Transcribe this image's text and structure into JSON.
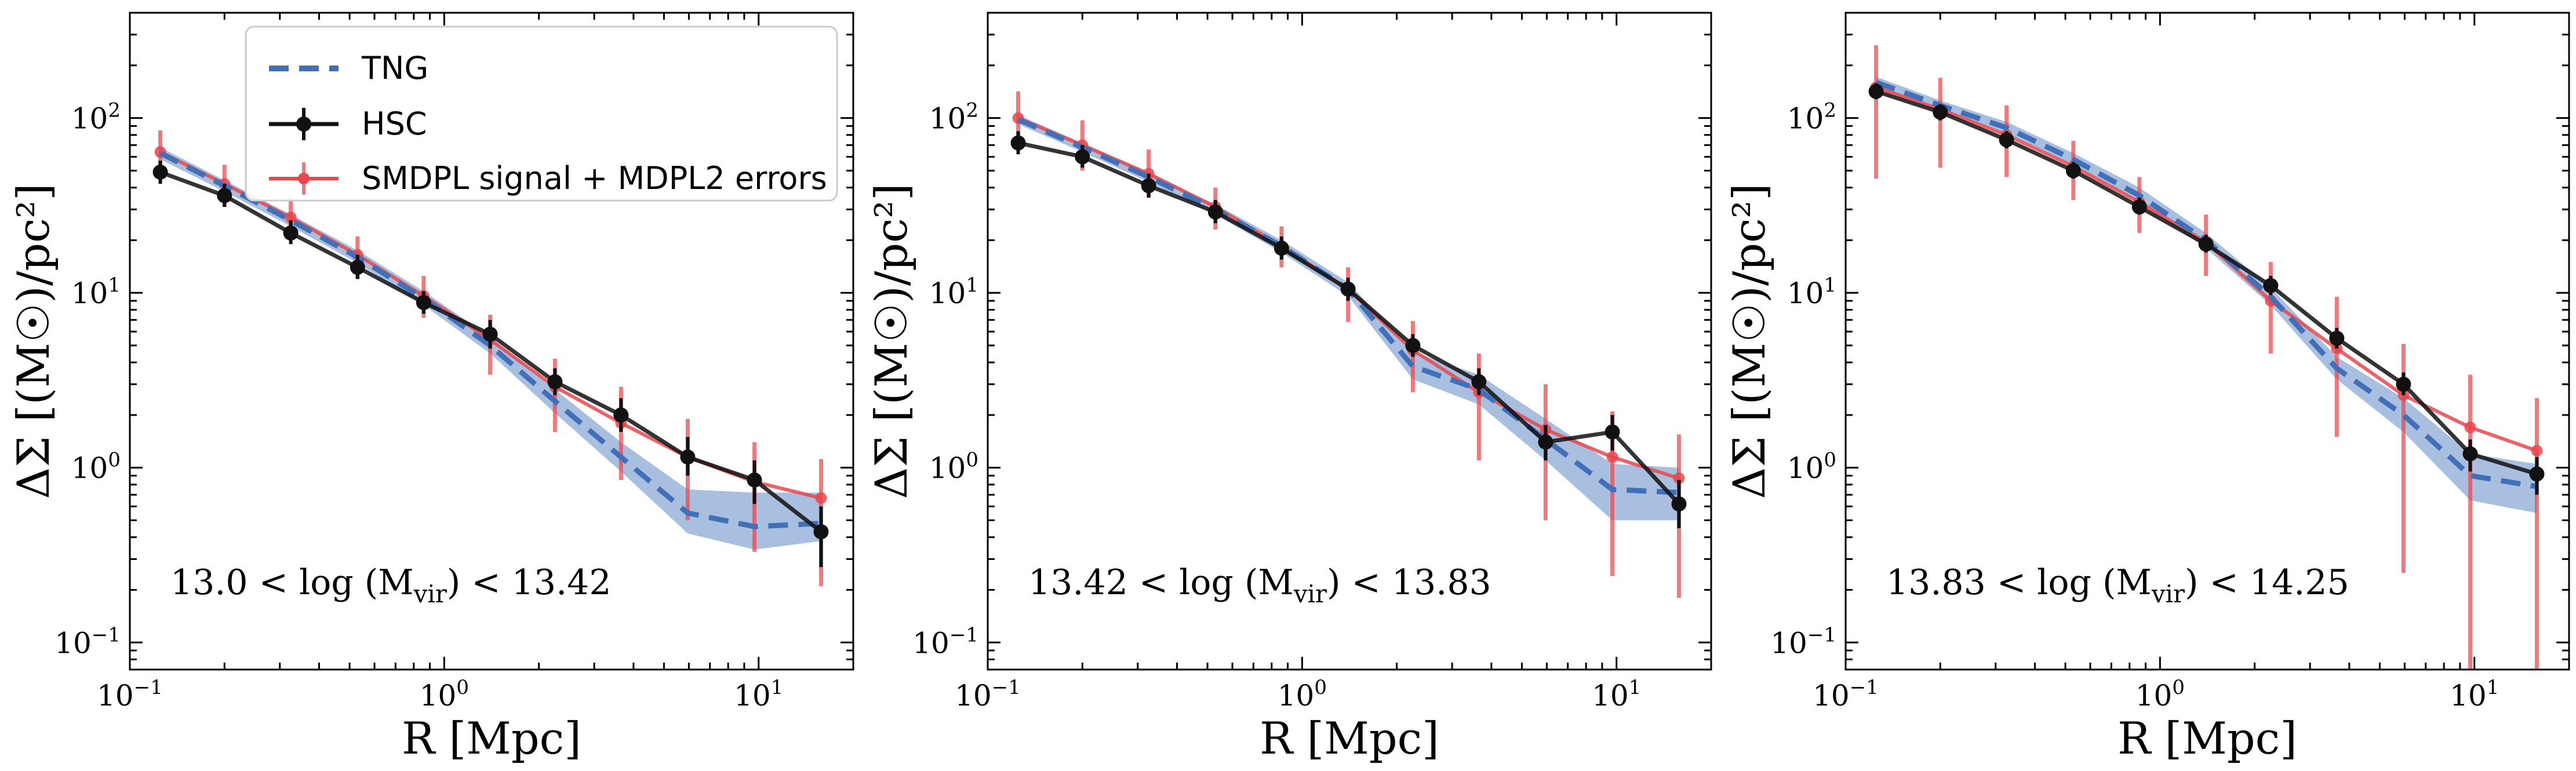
{
  "chart_data": [
    {
      "type": "line",
      "xlabel": "R [Mpc]",
      "ylabel": "ΔΣ [(M☉)/pc²]",
      "xscale": "log",
      "yscale": "log",
      "xlim": [
        0.1,
        20
      ],
      "ylim": [
        0.07,
        400
      ],
      "grid": false,
      "xticks": [
        {
          "base": "10",
          "exp": "−1"
        },
        {
          "base": "10",
          "exp": "0"
        },
        {
          "base": "10",
          "exp": "1"
        }
      ],
      "yticks": [
        {
          "base": "10",
          "exp": "−1"
        },
        {
          "base": "10",
          "exp": "0"
        },
        {
          "base": "10",
          "exp": "1"
        },
        {
          "base": "10",
          "exp": "2"
        }
      ],
      "annotation": "13.0 < log (M_vir) < 13.42",
      "annotation_parts": {
        "left": "13.0 < log (M",
        "sub": "vir",
        "right": ") < 13.42"
      },
      "legend": {
        "placement": "top",
        "entries": [
          "TNG",
          "HSC",
          "SMDPL signal + MDPL2 errors"
        ]
      },
      "x": [
        0.125,
        0.2,
        0.325,
        0.53,
        0.86,
        1.4,
        2.25,
        3.65,
        5.95,
        9.7,
        15.8
      ],
      "series": [
        {
          "name": "TNG",
          "color": "#4170b8",
          "style": "dashed",
          "values": [
            63,
            41,
            26,
            16,
            9.3,
            5.0,
            2.4,
            1.15,
            0.55,
            0.46,
            0.48
          ],
          "band_low": [
            58,
            38,
            24,
            14.8,
            8.5,
            4.5,
            2.05,
            0.95,
            0.42,
            0.34,
            0.38
          ],
          "band_high": [
            68,
            44,
            28,
            17.5,
            10.2,
            5.6,
            2.8,
            1.4,
            0.75,
            0.72,
            0.72
          ]
        },
        {
          "name": "HSC",
          "color": "#111111",
          "style": "solid",
          "values": [
            49,
            36,
            22,
            14,
            8.8,
            5.8,
            3.1,
            2.0,
            1.15,
            0.85,
            0.43
          ],
          "err_low": [
            42,
            31,
            19,
            12,
            7.6,
            4.8,
            2.6,
            1.6,
            0.9,
            0.62,
            0.27
          ],
          "err_high": [
            57,
            42,
            26,
            16.5,
            10.2,
            7.0,
            3.7,
            2.5,
            1.5,
            1.1,
            0.6
          ]
        },
        {
          "name": "SMDPL signal + MDPL2 errors",
          "color": "#e8474c",
          "style": "solid",
          "values": [
            64,
            42,
            27,
            16.5,
            9.6,
            5.4,
            2.9,
            1.8,
            1.15,
            0.83,
            0.67
          ],
          "err_low": [
            48,
            31,
            20,
            12,
            7.2,
            3.4,
            1.6,
            0.85,
            0.5,
            0.33,
            0.21
          ],
          "err_high": [
            85,
            54,
            35,
            21,
            12.5,
            7.5,
            4.2,
            2.9,
            1.9,
            1.4,
            1.12
          ]
        }
      ]
    },
    {
      "type": "line",
      "xlabel": "R [Mpc]",
      "ylabel": "ΔΣ [(M☉)/pc²]",
      "xscale": "log",
      "yscale": "log",
      "xlim": [
        0.1,
        20
      ],
      "ylim": [
        0.07,
        400
      ],
      "grid": false,
      "xticks": [
        {
          "base": "10",
          "exp": "−1"
        },
        {
          "base": "10",
          "exp": "0"
        },
        {
          "base": "10",
          "exp": "1"
        }
      ],
      "yticks": [
        {
          "base": "10",
          "exp": "−1"
        },
        {
          "base": "10",
          "exp": "0"
        },
        {
          "base": "10",
          "exp": "1"
        },
        {
          "base": "10",
          "exp": "2"
        }
      ],
      "annotation": "13.42 < log (M_vir) < 13.83",
      "annotation_parts": {
        "left": "13.42 < log (M",
        "sub": "vir",
        "right": ") < 13.83"
      },
      "x": [
        0.125,
        0.2,
        0.325,
        0.53,
        0.86,
        1.4,
        2.25,
        3.65,
        5.95,
        9.7,
        15.8
      ],
      "series": [
        {
          "name": "TNG",
          "color": "#4170b8",
          "style": "dashed",
          "values": [
            98,
            68,
            46,
            30,
            18.5,
            10.5,
            3.8,
            2.8,
            1.45,
            0.75,
            0.72
          ],
          "band_low": [
            92,
            64,
            43,
            28,
            17,
            9.6,
            3.2,
            2.3,
            1.1,
            0.5,
            0.5
          ],
          "band_high": [
            104,
            72,
            49,
            32,
            20,
            11.5,
            4.6,
            3.4,
            1.9,
            1.05,
            1.0
          ]
        },
        {
          "name": "HSC",
          "color": "#111111",
          "style": "solid",
          "values": [
            72,
            60,
            41,
            29,
            18,
            10.5,
            5.0,
            3.1,
            1.4,
            1.6,
            0.62
          ],
          "err_low": [
            62,
            52,
            35,
            25,
            15.5,
            9.0,
            4.3,
            2.6,
            1.1,
            1.25,
            0.45
          ],
          "err_high": [
            84,
            70,
            48,
            34,
            21,
            12.2,
            5.8,
            3.7,
            1.75,
            2.0,
            0.85
          ]
        },
        {
          "name": "SMDPL signal + MDPL2 errors",
          "color": "#e8474c",
          "style": "solid",
          "values": [
            100,
            70,
            48,
            31,
            18.5,
            10.5,
            4.7,
            2.7,
            1.65,
            1.15,
            0.87
          ],
          "err_low": [
            72,
            50,
            35,
            23,
            14,
            6.8,
            2.7,
            1.1,
            0.5,
            0.24,
            0.18
          ],
          "err_high": [
            142,
            97,
            66,
            40,
            24,
            14,
            6.9,
            4.5,
            3.0,
            2.1,
            1.55
          ]
        }
      ]
    },
    {
      "type": "line",
      "xlabel": "R [Mpc]",
      "ylabel": "ΔΣ [(M☉)/pc²]",
      "xscale": "log",
      "yscale": "log",
      "xlim": [
        0.1,
        20
      ],
      "ylim": [
        0.07,
        400
      ],
      "grid": false,
      "xticks": [
        {
          "base": "10",
          "exp": "−1"
        },
        {
          "base": "10",
          "exp": "0"
        },
        {
          "base": "10",
          "exp": "1"
        }
      ],
      "yticks": [
        {
          "base": "10",
          "exp": "−1"
        },
        {
          "base": "10",
          "exp": "0"
        },
        {
          "base": "10",
          "exp": "1"
        },
        {
          "base": "10",
          "exp": "2"
        }
      ],
      "annotation": "13.83 < log (M_vir) < 14.25",
      "annotation_parts": {
        "left": "13.83 < log (M",
        "sub": "vir",
        "right": ") < 14.25"
      },
      "x": [
        0.125,
        0.2,
        0.325,
        0.53,
        0.86,
        1.4,
        2.25,
        3.65,
        5.95,
        9.7,
        15.8
      ],
      "series": [
        {
          "name": "TNG",
          "color": "#4170b8",
          "style": "dashed",
          "values": [
            160,
            118,
            88,
            58,
            36,
            20,
            9.5,
            3.7,
            2.0,
            0.9,
            0.78
          ],
          "band_low": [
            150,
            110,
            82,
            54,
            33,
            18,
            8.5,
            3.2,
            1.6,
            0.65,
            0.55
          ],
          "band_high": [
            172,
            126,
            95,
            63,
            40,
            22,
            10.7,
            4.3,
            2.5,
            1.2,
            1.05
          ]
        },
        {
          "name": "HSC",
          "color": "#111111",
          "style": "solid",
          "values": [
            142,
            108,
            75,
            50,
            31,
            19,
            11,
            5.5,
            3.0,
            1.2,
            0.92
          ],
          "err_low": [
            128,
            97,
            67,
            45,
            28,
            17,
            9.7,
            4.8,
            2.6,
            0.95,
            0.7
          ],
          "err_high": [
            158,
            120,
            84,
            56,
            35,
            21.5,
            12.5,
            6.3,
            3.5,
            1.45,
            1.15
          ]
        },
        {
          "name": "SMDPL signal + MDPL2 errors",
          "color": "#e8474c",
          "style": "solid",
          "values": [
            150,
            112,
            80,
            53,
            33,
            19.5,
            9.0,
            4.8,
            2.6,
            1.7,
            1.25
          ]
        },
        {
          "name": "SMDPL signal + MDPL2 errors (error bars)",
          "color": "#e8474c",
          "style": "errorbar",
          "err_low": [
            45,
            52,
            46,
            34,
            22,
            12.5,
            4.5,
            1.5,
            0.25,
            0.07,
            0.07
          ],
          "err_high": [
            260,
            170,
            118,
            74,
            46,
            28,
            15,
            9.5,
            5.1,
            3.4,
            2.5
          ]
        }
      ]
    }
  ]
}
